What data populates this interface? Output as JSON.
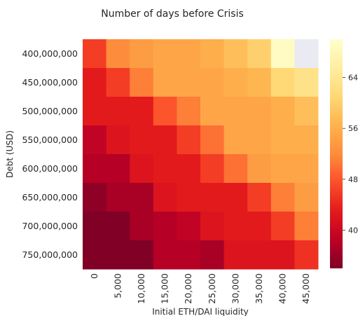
{
  "chart_data": {
    "type": "heatmap",
    "title": "Number of days before Crisis",
    "xlabel": "Initial ETH/DAI liquidity",
    "ylabel": "Debt (USD)",
    "x_categories": [
      "0",
      "5,000",
      "10,000",
      "15,000",
      "20,000",
      "25,000",
      "30,000",
      "35,000",
      "40,000",
      "45,000"
    ],
    "y_categories": [
      "400,000,000",
      "450,000,000",
      "500,000,000",
      "550,000,000",
      "600,000,000",
      "650,000,000",
      "700,000,000",
      "750,000,000"
    ],
    "values": [
      [
        46,
        52,
        54,
        55,
        55,
        56,
        58,
        60,
        69,
        null
      ],
      [
        43,
        46,
        51,
        55,
        55,
        55,
        56,
        57,
        61,
        63
      ],
      [
        43,
        43,
        43,
        48,
        51,
        55,
        55,
        55,
        56,
        58
      ],
      [
        39,
        42,
        43,
        43,
        46,
        50,
        55,
        55,
        56,
        56
      ],
      [
        38,
        38,
        42,
        43,
        43,
        46,
        50,
        54,
        55,
        55
      ],
      [
        35,
        37,
        37,
        42,
        43,
        43,
        43,
        46,
        51,
        54
      ],
      [
        34,
        34,
        37,
        38,
        39,
        42,
        43,
        43,
        46,
        51
      ],
      [
        34,
        34,
        34,
        38,
        38,
        37,
        42,
        42,
        42,
        45
      ]
    ],
    "colorbar": {
      "ticks": [
        40,
        48,
        56,
        64
      ],
      "range": [
        34,
        70
      ],
      "colormap": "YlOrRd_r"
    },
    "missing_color": "#eaeaf2"
  }
}
